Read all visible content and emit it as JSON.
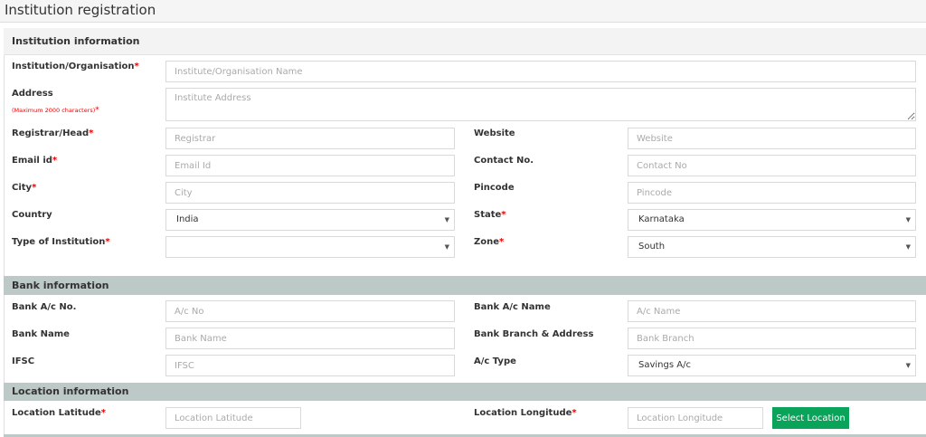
{
  "page_title": "Institution registration",
  "sections": {
    "institution": "Institution information",
    "bank": "Bank information",
    "location": "Location information"
  },
  "fields": {
    "institution": {
      "label": "Institution/Organisation",
      "placeholder": "Institute/Organisation Name"
    },
    "address": {
      "label": "Address",
      "note": "(Maximum 2000 characters)",
      "placeholder": "Institute Address"
    },
    "registrar": {
      "label": "Registrar/Head",
      "placeholder": "Registrar"
    },
    "website": {
      "label": "Website",
      "placeholder": "Website"
    },
    "email": {
      "label": "Email id",
      "placeholder": "Email Id"
    },
    "contact": {
      "label": "Contact No.",
      "placeholder": "Contact No"
    },
    "city": {
      "label": "City",
      "placeholder": "City"
    },
    "pincode": {
      "label": "Pincode",
      "placeholder": "Pincode"
    },
    "country": {
      "label": "Country",
      "value": "India"
    },
    "state": {
      "label": "State",
      "value": "Karnataka"
    },
    "type": {
      "label": "Type of Institution",
      "value": ""
    },
    "zone": {
      "label": "Zone",
      "value": "South"
    },
    "acno": {
      "label": "Bank A/c No.",
      "placeholder": "A/c No"
    },
    "acname": {
      "label": "Bank A/c Name",
      "placeholder": "A/c Name"
    },
    "bankname": {
      "label": "Bank Name",
      "placeholder": "Bank Name"
    },
    "branch": {
      "label": "Bank Branch & Address",
      "placeholder": "Bank Branch"
    },
    "ifsc": {
      "label": "IFSC",
      "placeholder": "IFSC"
    },
    "actype": {
      "label": "A/c Type",
      "value": "Savings A/c"
    },
    "lat": {
      "label": "Location Latitude",
      "placeholder": "Location Latitude"
    },
    "lng": {
      "label": "Location Longitude",
      "placeholder": "Location Longitude"
    }
  },
  "required_mark": "*",
  "select_location_label": "Select Location",
  "colors": {
    "section_header": "#bcc9c6",
    "button": "#0aa35a",
    "required": "#ee0000"
  }
}
